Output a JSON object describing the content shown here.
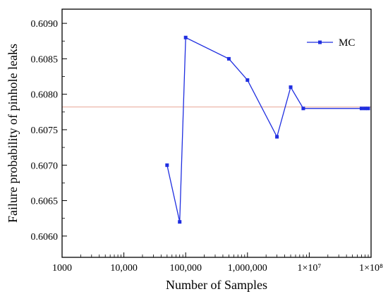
{
  "chart_data": {
    "type": "line",
    "title": "",
    "xlabel": "Number of Samples",
    "ylabel": "Failure probability of pinhole leaks",
    "xscale": "log",
    "xlim": [
      1000,
      100000000
    ],
    "ylim": [
      0.6057,
      0.6092
    ],
    "x_ticks": [
      1000,
      10000,
      100000,
      1000000,
      10000000,
      100000000
    ],
    "x_tick_labels": [
      "1000",
      "10,000",
      "100,000",
      "1,000,000",
      "1×10⁷",
      "1×10⁸"
    ],
    "y_ticks": [
      0.606,
      0.6065,
      0.607,
      0.6075,
      0.608,
      0.6085,
      0.609
    ],
    "y_tick_labels": [
      "0.6060",
      "0.6065",
      "0.6070",
      "0.6075",
      "0.6080",
      "0.6085",
      "0.6090"
    ],
    "grid": false,
    "legend_position": "top-right",
    "series": [
      {
        "name": "MC",
        "color": "#1f2ee0",
        "marker": "square",
        "x": [
          50000,
          80000,
          100000,
          500000,
          1000000,
          3000000,
          5000000,
          8000000,
          70000000,
          80000000,
          90000000
        ],
        "y": [
          0.607,
          0.6062,
          0.6088,
          0.6085,
          0.6082,
          0.6074,
          0.6081,
          0.6078,
          0.6078,
          0.6078,
          0.6078
        ]
      }
    ],
    "reference_line": {
      "y": 0.60782,
      "color": "#e8a596"
    }
  }
}
